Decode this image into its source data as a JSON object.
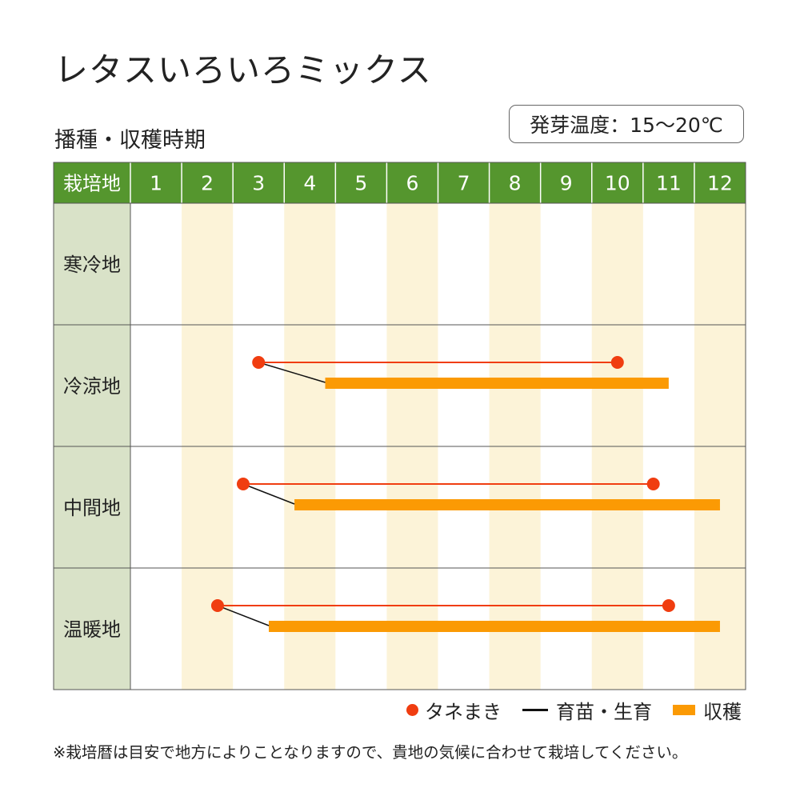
{
  "title": "レタスいろいろミックス",
  "subtitle": "播種・収穫時期",
  "germination_badge": "発芽温度：15～20℃",
  "colors": {
    "header_green": "#55962e",
    "row_label_bg": "#d9e2c8",
    "alt_column": "#fcf3d8",
    "sowing_red": "#f03d10",
    "harvest_orange": "#fb9a04",
    "seedling_black": "#111111",
    "grid_line": "#555555"
  },
  "chart_data": {
    "type": "table",
    "header_label": "栽培地",
    "months": [
      "1",
      "2",
      "3",
      "4",
      "5",
      "6",
      "7",
      "8",
      "9",
      "10",
      "11",
      "12"
    ],
    "regions": [
      {
        "name": "寒冷地",
        "sowing": null,
        "harvest": null
      },
      {
        "name": "冷涼地",
        "sowing": [
          3.5,
          10.5
        ],
        "harvest": [
          4.8,
          11.5
        ]
      },
      {
        "name": "中間地",
        "sowing": [
          3.2,
          11.2
        ],
        "harvest": [
          4.2,
          12.5
        ]
      },
      {
        "name": "温暖地",
        "sowing": [
          2.7,
          11.5
        ],
        "harvest": [
          3.7,
          12.5
        ]
      }
    ]
  },
  "legend": {
    "sowing": "タネまき",
    "seedling": "育苗・生育",
    "harvest": "収穫"
  },
  "footnote": "※栽培暦は目安で地方によりことなりますので、貴地の気候に合わせて栽培してください。"
}
